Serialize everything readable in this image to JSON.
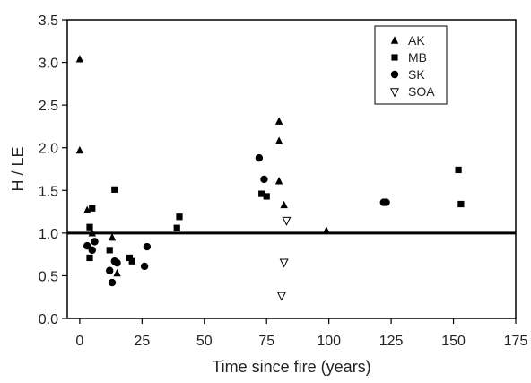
{
  "chart_data": {
    "type": "scatter",
    "xlabel": "Time since fire (years)",
    "ylabel": "H / LE",
    "xlim": [
      -5,
      175
    ],
    "ylim": [
      0,
      3.5
    ],
    "x_ticks": [
      0,
      25,
      50,
      75,
      100,
      125,
      150,
      175
    ],
    "y_ticks": [
      0.0,
      0.5,
      1.0,
      1.5,
      2.0,
      2.5,
      3.0,
      3.5
    ],
    "x_tick_labels": [
      "0",
      "25",
      "50",
      "75",
      "100",
      "125",
      "150",
      "175"
    ],
    "y_tick_labels": [
      "0.0",
      "0.5",
      "1.0",
      "1.5",
      "2.0",
      "2.5",
      "3.0",
      "3.5"
    ],
    "reference_line": {
      "y": 1.0
    },
    "legend_position": "top-right",
    "series": [
      {
        "name": "AK",
        "marker": "triangle-up",
        "color": "#000000",
        "points": [
          [
            0,
            3.04
          ],
          [
            0,
            1.97
          ],
          [
            3,
            1.27
          ],
          [
            5,
            1.0
          ],
          [
            13,
            0.95
          ],
          [
            15,
            0.53
          ],
          [
            80,
            2.31
          ],
          [
            80,
            2.08
          ],
          [
            80,
            1.61
          ],
          [
            82,
            1.33
          ],
          [
            99,
            1.03
          ]
        ]
      },
      {
        "name": "MB",
        "marker": "square",
        "color": "#000000",
        "points": [
          [
            4,
            1.07
          ],
          [
            4,
            0.71
          ],
          [
            5,
            1.29
          ],
          [
            12,
            0.8
          ],
          [
            14,
            1.51
          ],
          [
            20,
            0.71
          ],
          [
            21,
            0.67
          ],
          [
            39,
            1.06
          ],
          [
            40,
            1.19
          ],
          [
            73,
            1.46
          ],
          [
            75,
            1.43
          ],
          [
            152,
            1.74
          ],
          [
            153,
            1.34
          ]
        ]
      },
      {
        "name": "SK",
        "marker": "circle",
        "color": "#000000",
        "points": [
          [
            3,
            0.85
          ],
          [
            5,
            0.8
          ],
          [
            6,
            0.9
          ],
          [
            12,
            0.56
          ],
          [
            13,
            0.42
          ],
          [
            14,
            0.67
          ],
          [
            15,
            0.65
          ],
          [
            26,
            0.61
          ],
          [
            27,
            0.84
          ],
          [
            72,
            1.88
          ],
          [
            74,
            1.63
          ],
          [
            122,
            1.36
          ],
          [
            123,
            1.36
          ]
        ]
      },
      {
        "name": "SOA",
        "marker": "triangle-down-open",
        "color": "#000000",
        "points": [
          [
            83,
            1.15
          ],
          [
            82,
            0.66
          ],
          [
            81,
            0.27
          ]
        ]
      }
    ]
  }
}
